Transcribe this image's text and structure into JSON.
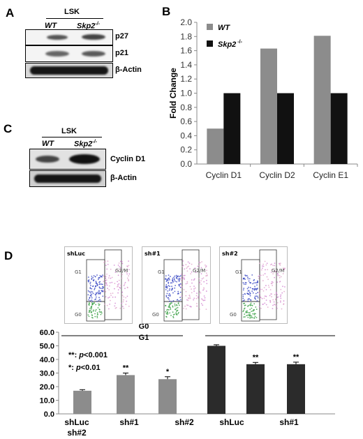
{
  "panels": {
    "a": {
      "letter": "A",
      "group": "LSK",
      "wt": "WT",
      "ko": "Skp2",
      "ko_sup": "-/-",
      "rows": [
        "p27",
        "p21",
        "β-Actin"
      ]
    },
    "b": {
      "letter": "B"
    },
    "c": {
      "letter": "C",
      "group": "LSK",
      "wt": "WT",
      "ko": "Skp2",
      "ko_sup": "-/-",
      "rows": [
        "Cyclin D1",
        "β-Actin"
      ]
    },
    "d": {
      "letter": "D",
      "flow": [
        {
          "title": "shLuc",
          "g1": "G1",
          "g0": "G0",
          "g2m": "G2/M"
        },
        {
          "title": "sh#1",
          "g1": "G1",
          "g0": "G0",
          "g2m": "G2/M"
        },
        {
          "title": "sh#2",
          "g1": "G1",
          "g0": "G0",
          "g2m": "G2/M"
        }
      ],
      "legend_g0": "G0",
      "legend_g1": "G1",
      "sig1_stars": "**",
      "sig1_colon": ": ",
      "sig1_p": "p",
      "sig1_val": "<0.001",
      "sig2_stars": "*",
      "sig2_colon": ": ",
      "sig2_p": "p",
      "sig2_val": "<0.01",
      "xlabels_row1": [
        "shLuc",
        "sh#1",
        "sh#2",
        "shLuc",
        "sh#1"
      ],
      "xlabels_row2": [
        "sh#2"
      ]
    }
  },
  "colors": {
    "gray_bar": "#8c8c8c",
    "black_bar": "#111111",
    "dark_bar": "#2b2b2b"
  },
  "chart_data": [
    {
      "type": "bar",
      "categories": [
        "Cyclin D1",
        "Cyclin D2",
        "Cyclin E1"
      ],
      "series": [
        {
          "name": "WT",
          "values": [
            0.5,
            1.63,
            1.81
          ]
        },
        {
          "name": "Skp2 -/-",
          "values": [
            1.0,
            1.0,
            1.0
          ]
        }
      ],
      "ylabel": "Fold Change",
      "ylim": [
        0,
        2.0
      ],
      "yticks": [
        "0.0",
        "0.2",
        "0.4",
        "0.6",
        "0.8",
        "1.0",
        "1.2",
        "1.4",
        "1.6",
        "1.8",
        "2.0"
      ],
      "legend": "top-left"
    },
    {
      "type": "bar",
      "categories": [
        "shLuc",
        "sh#1",
        "sh#2"
      ],
      "series": [
        {
          "name": "G0",
          "values": [
            17.0,
            28.5,
            25.5
          ],
          "errors": [
            0.8,
            1.5,
            1.8
          ],
          "stars": [
            "",
            "**",
            "*"
          ]
        },
        {
          "name": "G1",
          "values": [
            50.0,
            36.5,
            36.5
          ],
          "errors": [
            0.8,
            1.3,
            1.5
          ],
          "stars": [
            "",
            "**",
            "**"
          ]
        }
      ],
      "ylim": [
        0,
        60
      ],
      "yticks": [
        "0.0",
        "10.0",
        "20.0",
        "30.0",
        "40.0",
        "50.0",
        "60.0"
      ]
    }
  ]
}
